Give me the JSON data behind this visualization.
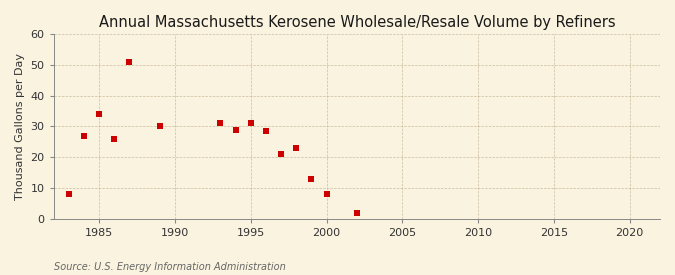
{
  "title": "Annual Massachusetts Kerosene Wholesale/Resale Volume by Refiners",
  "ylabel": "Thousand Gallons per Day",
  "source": "Source: U.S. Energy Information Administration",
  "background_color": "#faf3e0",
  "plot_background_color": "#faf3e0",
  "x_data": [
    1983,
    1984,
    1985,
    1986,
    1987,
    1989,
    1993,
    1994,
    1995,
    1996,
    1997,
    1998,
    1999,
    2000,
    2002
  ],
  "y_data": [
    8,
    27,
    34,
    26,
    51,
    30,
    31,
    29,
    31,
    28.5,
    21,
    23,
    13,
    8,
    2
  ],
  "marker_color": "#cc0000",
  "marker_size": 18,
  "xlim": [
    1982,
    2022
  ],
  "ylim": [
    0,
    60
  ],
  "xticks": [
    1985,
    1990,
    1995,
    2000,
    2005,
    2010,
    2015,
    2020
  ],
  "yticks": [
    0,
    10,
    20,
    30,
    40,
    50,
    60
  ],
  "title_fontsize": 10.5,
  "label_fontsize": 8,
  "tick_fontsize": 8,
  "source_fontsize": 7
}
